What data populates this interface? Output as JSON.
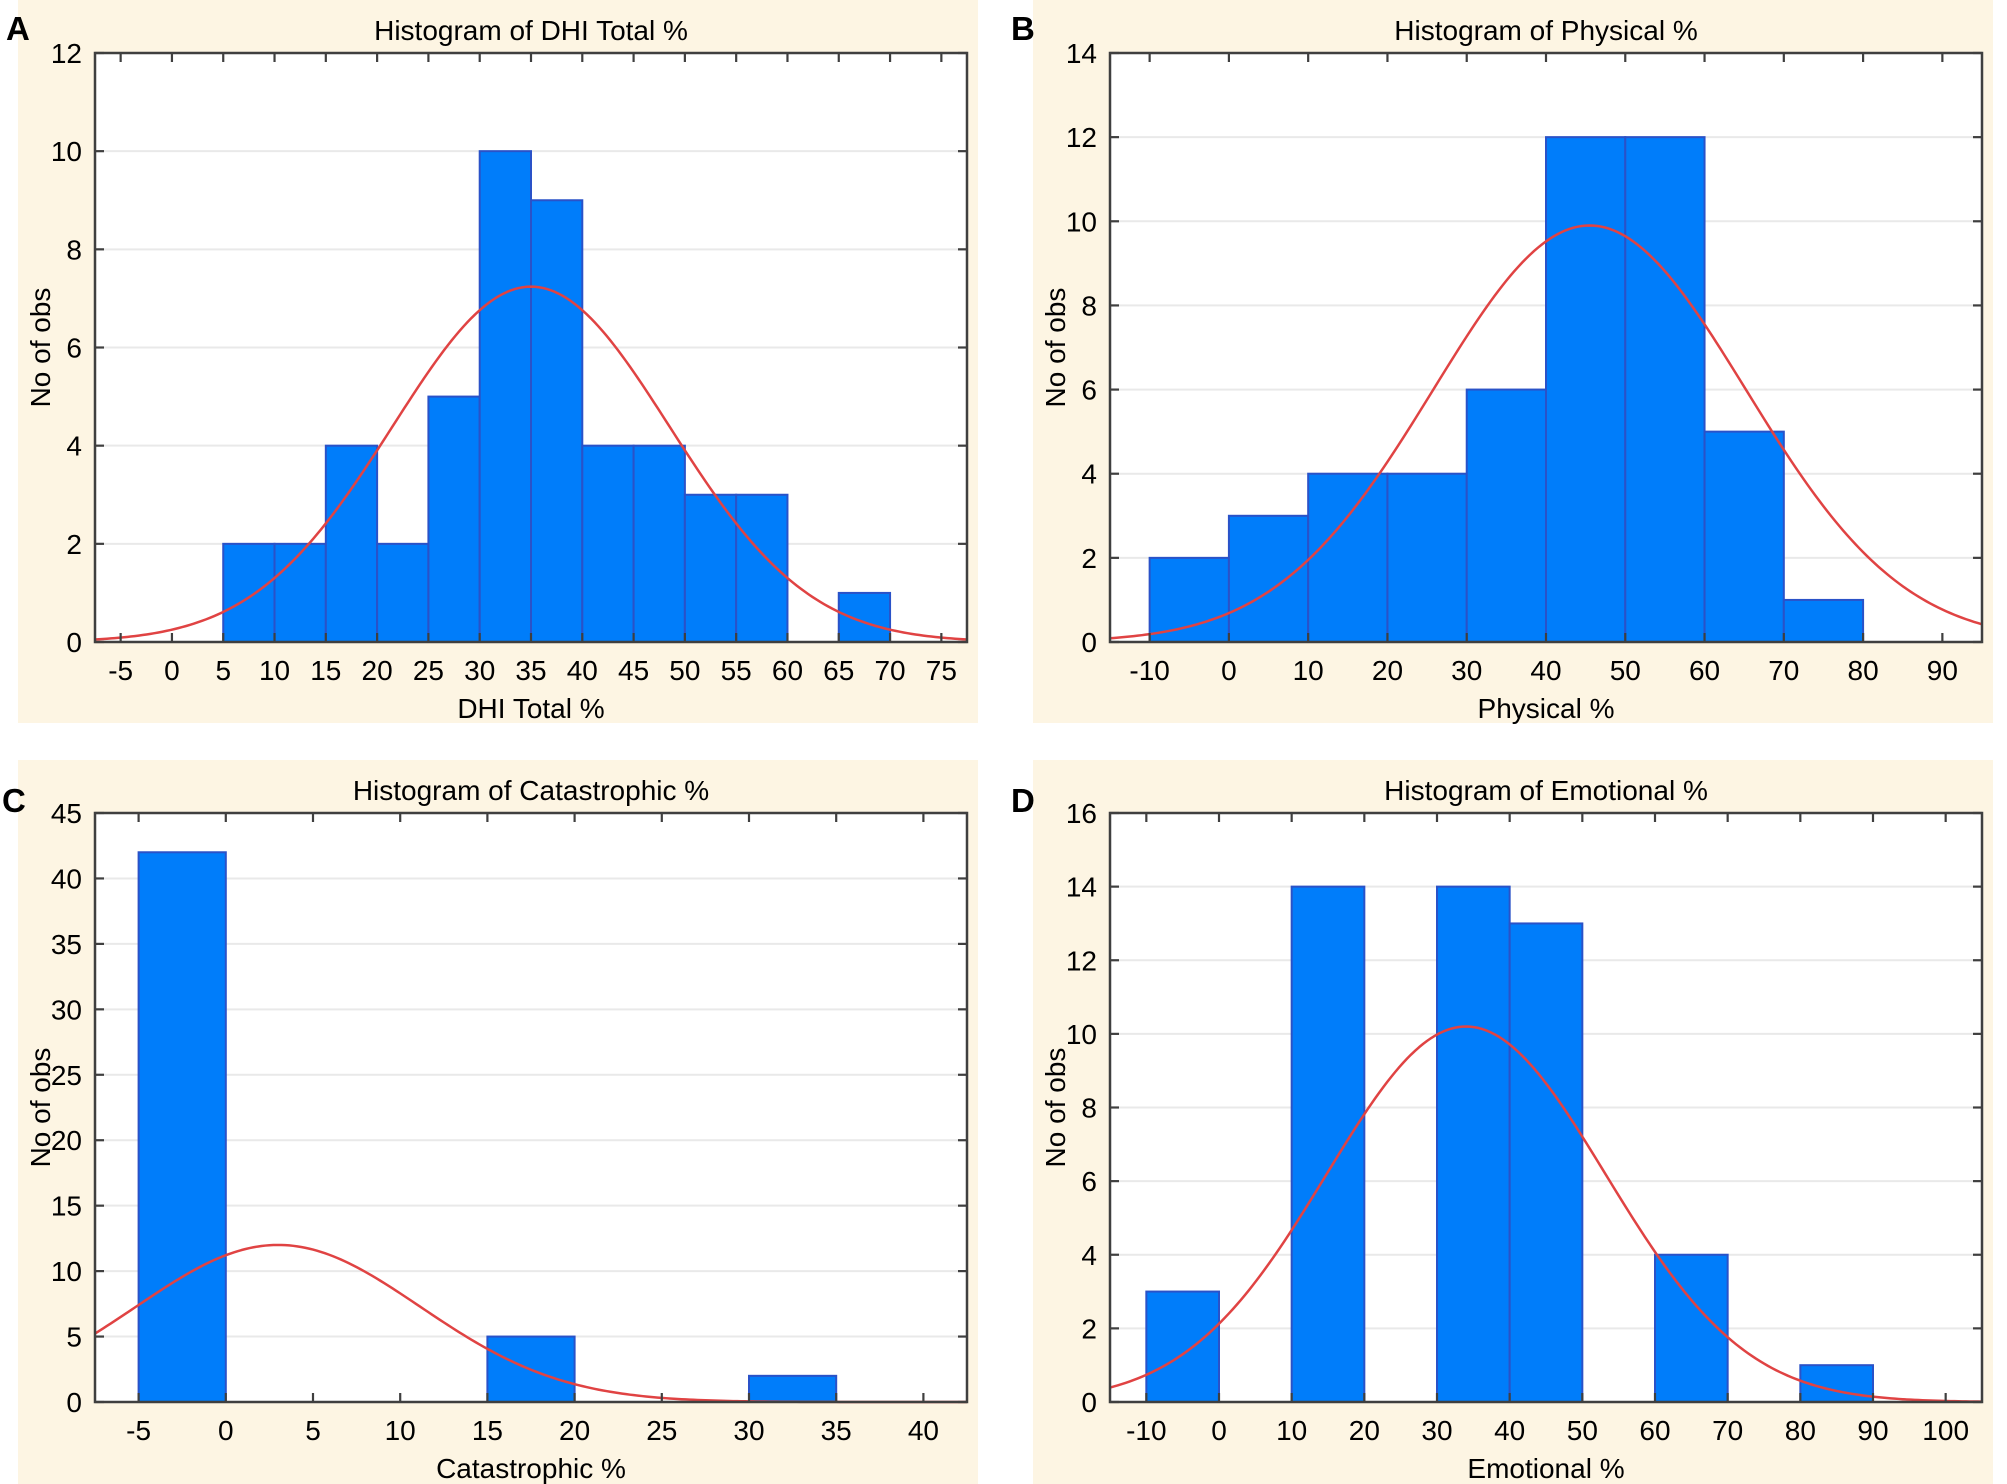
{
  "figure": {
    "background": "#FFFFFF",
    "panel_background": "#FDF5E3",
    "plot_background": "#FFFFFF",
    "bar_fill": "#007DFA",
    "bar_stroke": "#2A52C8",
    "curve_color": "#E04343",
    "frame_color": "#3F3F3F",
    "grid_color": "#E9E9E9",
    "text_color": "#000000"
  },
  "chart_data": [
    {
      "letter": "A",
      "type": "bar",
      "title": "Histogram of DHI Total %",
      "xlabel": "DHI Total %",
      "ylabel": "No of obs",
      "xlim": [
        -7.5,
        77.5
      ],
      "xticks": {
        "start": -5,
        "end": 75,
        "step": 5
      },
      "ylim": [
        0,
        12
      ],
      "ytick_step": 2,
      "grid": "horizontal",
      "bin_width": 5,
      "bins": [
        {
          "x0": 5,
          "count": 2
        },
        {
          "x0": 10,
          "count": 2
        },
        {
          "x0": 15,
          "count": 4
        },
        {
          "x0": 20,
          "count": 2
        },
        {
          "x0": 25,
          "count": 5
        },
        {
          "x0": 30,
          "count": 10
        },
        {
          "x0": 35,
          "count": 9
        },
        {
          "x0": 40,
          "count": 4
        },
        {
          "x0": 45,
          "count": 4
        },
        {
          "x0": 50,
          "count": 3
        },
        {
          "x0": 55,
          "count": 3
        },
        {
          "x0": 65,
          "count": 1
        }
      ],
      "normal_curve": {
        "mean": 35,
        "sd": 13.5,
        "peak": 7.24
      }
    },
    {
      "letter": "B",
      "type": "bar",
      "title": "Histogram of Physical %",
      "xlabel": "Physical %",
      "ylabel": "No of obs",
      "xlim": [
        -15,
        95
      ],
      "xticks": {
        "start": -10,
        "end": 90,
        "step": 10
      },
      "ylim": [
        0,
        14
      ],
      "ytick_step": 2,
      "grid": "horizontal",
      "bin_width": 10,
      "bins": [
        {
          "x0": -10,
          "count": 2
        },
        {
          "x0": 0,
          "count": 3
        },
        {
          "x0": 10,
          "count": 4
        },
        {
          "x0": 20,
          "count": 4
        },
        {
          "x0": 30,
          "count": 6
        },
        {
          "x0": 40,
          "count": 12
        },
        {
          "x0": 50,
          "count": 12
        },
        {
          "x0": 60,
          "count": 5
        },
        {
          "x0": 70,
          "count": 1
        }
      ],
      "normal_curve": {
        "mean": 45.5,
        "sd": 19.7,
        "peak": 9.9
      }
    },
    {
      "letter": "C",
      "type": "bar",
      "title": "Histogram of Catastrophic %",
      "xlabel": "Catastrophic %",
      "ylabel": "No of obs",
      "xlim": [
        -7.5,
        42.5
      ],
      "xticks": {
        "start": -5,
        "end": 40,
        "step": 5
      },
      "ylim": [
        0,
        45
      ],
      "ytick_step": 5,
      "grid": "horizontal",
      "bin_width": 5,
      "bins": [
        {
          "x0": -5,
          "count": 42
        },
        {
          "x0": 15,
          "count": 5
        },
        {
          "x0": 30,
          "count": 2
        }
      ],
      "normal_curve": {
        "mean": 3,
        "sd": 8.15,
        "peak": 12
      }
    },
    {
      "letter": "D",
      "type": "bar",
      "title": "Histogram of Emotional %",
      "xlabel": "Emotional %",
      "ylabel": "No of obs",
      "xlim": [
        -15,
        105
      ],
      "xticks": {
        "start": -10,
        "end": 100,
        "step": 10
      },
      "ylim": [
        0,
        16
      ],
      "ytick_step": 2,
      "grid": "horizontal",
      "bin_width": 10,
      "bins": [
        {
          "x0": -10,
          "count": 3
        },
        {
          "x0": 10,
          "count": 14
        },
        {
          "x0": 30,
          "count": 14
        },
        {
          "x0": 40,
          "count": 13
        },
        {
          "x0": 60,
          "count": 4
        },
        {
          "x0": 80,
          "count": 1
        }
      ],
      "normal_curve": {
        "mean": 34,
        "sd": 19.2,
        "peak": 10.2
      }
    }
  ]
}
